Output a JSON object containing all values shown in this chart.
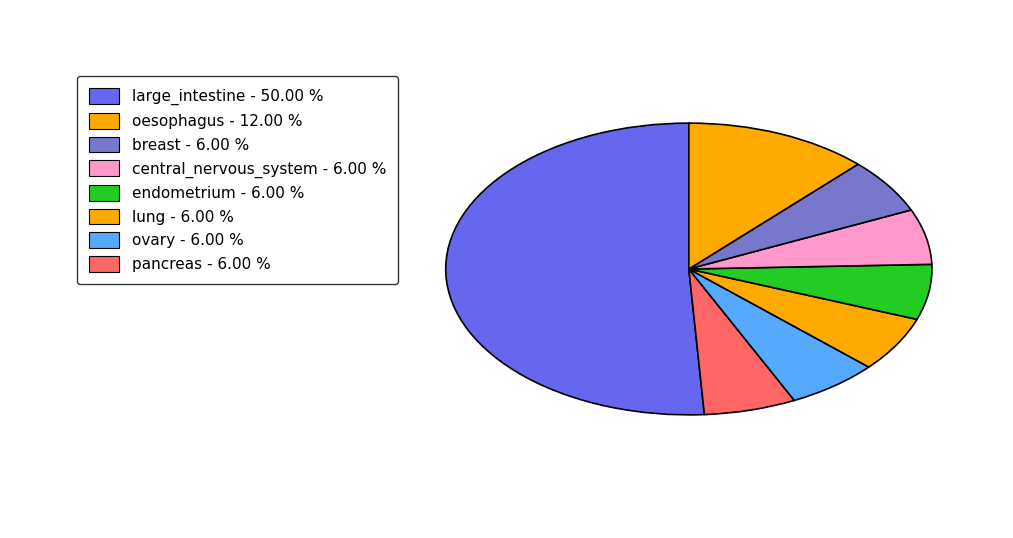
{
  "labels": [
    "large_intestine",
    "pancreas",
    "ovary",
    "lung",
    "endometrium",
    "central_nervous_system",
    "breast",
    "oesophagus"
  ],
  "sizes": [
    50,
    6,
    6,
    6,
    6,
    6,
    6,
    12
  ],
  "colors": [
    "#6666ee",
    "#ff6666",
    "#55aaff",
    "#ffaa00",
    "#22cc22",
    "#ff99cc",
    "#7777cc",
    "#ffaa00"
  ],
  "legend_labels": [
    "large_intestine - 50.00 %",
    "oesophagus - 12.00 %",
    "breast - 6.00 %",
    "central_nervous_system - 6.00 %",
    "endometrium - 6.00 %",
    "lung - 6.00 %",
    "ovary - 6.00 %",
    "pancreas - 6.00 %"
  ],
  "legend_colors": [
    "#6666ee",
    "#ffaa00",
    "#7777cc",
    "#ff99cc",
    "#22cc22",
    "#ffaa00",
    "#55aaff",
    "#ff6666"
  ],
  "startangle": 90,
  "counterclock": true,
  "aspect_ratio": 0.6,
  "figsize": [
    10.13,
    5.38
  ],
  "dpi": 100
}
